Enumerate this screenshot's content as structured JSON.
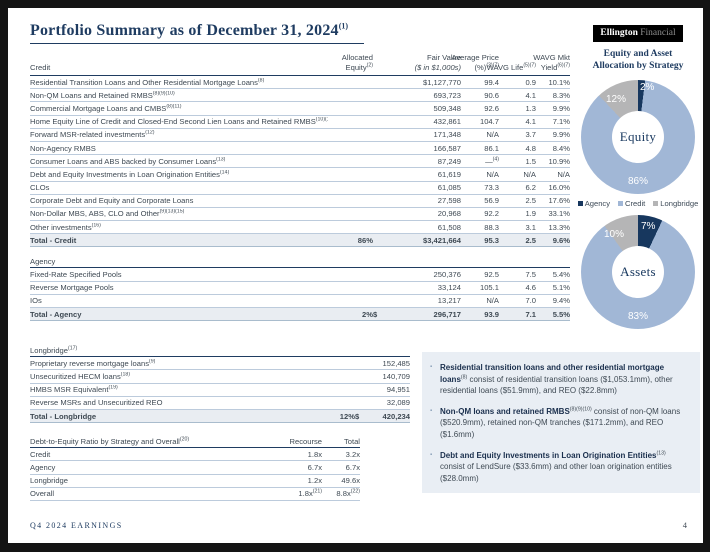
{
  "slide": {
    "title": "Portfolio Summary as of December 31, 2024",
    "title_sup": "(1)",
    "footer_left": "Q4 2024 EARNINGS",
    "page_number": "4"
  },
  "main_table": {
    "section_label": "Credit",
    "headers": {
      "eq_l1": "Allocated",
      "eq_l2": "Equity",
      "eq_sup": "(2)",
      "fv_l1": "Fair Value",
      "fv_l2": "($ in $1,000s)",
      "pr_l1": "Average Price",
      "pr_l2": "(%)",
      "pr_sup": "(3)(7)",
      "lf": "WAVG Life",
      "lf_sup": "(5)(7)",
      "yd_l1": "WAVG Mkt",
      "yd_l2": "Yield",
      "yd_sup": "(6)(7)"
    },
    "credit_rows": [
      {
        "label": "Residential Transition Loans and Other Residential Mortgage Loans",
        "sup": "(8)",
        "equity": "",
        "fair_value": "$1,127,770",
        "price": "99.4",
        "price_sup": "",
        "life": "0.9",
        "yield": "10.1%"
      },
      {
        "label": "Non-QM Loans and Retained RMBS",
        "sup": "(8)(9)(10)",
        "equity": "",
        "fair_value": "693,723",
        "price": "90.6",
        "price_sup": "",
        "life": "4.1",
        "yield": "8.3%"
      },
      {
        "label": "Commercial Mortgage Loans and CMBS",
        "sup": "(8)(11)",
        "equity": "",
        "fair_value": "509,348",
        "price": "92.6",
        "price_sup": "",
        "life": "1.3",
        "yield": "9.9%"
      },
      {
        "label": "Home Equity Line of Credit and Closed-End Second Lien Loans and Retained RMBS",
        "sup": "(10)(13)",
        "equity": "",
        "fair_value": "432,861",
        "price": "104.7",
        "price_sup": "",
        "life": "4.1",
        "yield": "7.1%"
      },
      {
        "label": "Forward MSR-related investments",
        "sup": "(12)",
        "equity": "",
        "fair_value": "171,348",
        "price": "N/A",
        "price_sup": "",
        "life": "3.7",
        "yield": "9.9%"
      },
      {
        "label": "Non-Agency RMBS",
        "sup": "",
        "equity": "",
        "fair_value": "166,587",
        "price": "86.1",
        "price_sup": "",
        "life": "4.8",
        "yield": "8.4%"
      },
      {
        "label": "Consumer Loans and ABS backed by Consumer Loans",
        "sup": "(13)",
        "equity": "",
        "fair_value": "87,249",
        "price": "—",
        "price_sup": "(4)",
        "life": "1.5",
        "yield": "10.9%"
      },
      {
        "label": "Debt and Equity Investments in Loan Origination Entities",
        "sup": "(14)",
        "equity": "",
        "fair_value": "61,619",
        "price": "N/A",
        "price_sup": "",
        "life": "N/A",
        "yield": "N/A"
      },
      {
        "label": "CLOs",
        "sup": "",
        "equity": "",
        "fair_value": "61,085",
        "price": "73.3",
        "price_sup": "",
        "life": "6.2",
        "yield": "16.0%"
      },
      {
        "label": "Corporate Debt and Equity and Corporate Loans",
        "sup": "",
        "equity": "",
        "fair_value": "27,598",
        "price": "56.9",
        "price_sup": "",
        "life": "2.5",
        "yield": "17.6%"
      },
      {
        "label": "Non-Dollar MBS, ABS, CLO and Other",
        "sup": "(9)(13)(15)",
        "equity": "",
        "fair_value": "20,968",
        "price": "92.2",
        "price_sup": "",
        "life": "1.9",
        "yield": "33.1%"
      },
      {
        "label": "Other investments",
        "sup": "(16)",
        "equity": "",
        "fair_value": "61,508",
        "price": "88.3",
        "price_sup": "",
        "life": "3.1",
        "yield": "13.3%"
      }
    ],
    "credit_total": {
      "label": "Total - Credit",
      "equity": "86%",
      "dollar": "",
      "fair_value": "$3,421,664",
      "price": "95.3",
      "life": "2.5",
      "yield": "9.6%"
    },
    "agency_label": "Agency",
    "agency_rows": [
      {
        "label": "Fixed-Rate Specified Pools",
        "sup": "",
        "equity": "",
        "fair_value": "250,376",
        "price": "92.5",
        "price_sup": "",
        "life": "7.5",
        "yield": "5.4%"
      },
      {
        "label": "Reverse Mortgage Pools",
        "sup": "",
        "equity": "",
        "fair_value": "33,124",
        "price": "105.1",
        "price_sup": "",
        "life": "4.6",
        "yield": "5.1%"
      },
      {
        "label": "IOs",
        "sup": "",
        "equity": "",
        "fair_value": "13,217",
        "price": "N/A",
        "price_sup": "",
        "life": "7.0",
        "yield": "9.4%"
      }
    ],
    "agency_total": {
      "label": "Total - Agency",
      "equity": "2%",
      "dollar": "$",
      "fair_value": "296,717",
      "price": "93.9",
      "life": "7.1",
      "yield": "5.5%"
    }
  },
  "longbridge_table": {
    "section_label": "Longbridge",
    "section_sup": "(17)",
    "rows": [
      {
        "label": "Proprietary reverse mortgage loans",
        "sup": "(9)",
        "fair_value": "152,485"
      },
      {
        "label": "Unsecuritized HECM loans",
        "sup": "(18)",
        "fair_value": "140,709"
      },
      {
        "label": "HMBS MSR Equivalent",
        "sup": "(19)",
        "fair_value": "94,951"
      },
      {
        "label": "Reverse MSRs and Unsecuritized REO",
        "sup": "",
        "fair_value": "32,089"
      }
    ],
    "total": {
      "label": "Total - Longbridge",
      "equity": "12%",
      "dollar": "$",
      "fair_value": "420,234"
    }
  },
  "dte_table": {
    "header_label": "Debt-to-Equity Ratio by Strategy and Overall",
    "header_sup": "(20)",
    "col_recourse": "Recourse",
    "col_total": "Total",
    "rows": [
      {
        "label": "Credit",
        "recourse": "1.8x",
        "recourse_sup": "",
        "total": "3.2x",
        "total_sup": ""
      },
      {
        "label": "Agency",
        "recourse": "6.7x",
        "recourse_sup": "",
        "total": "6.7x",
        "total_sup": ""
      },
      {
        "label": "Longbridge",
        "recourse": "1.2x",
        "recourse_sup": "",
        "total": "49.6x",
        "total_sup": ""
      },
      {
        "label": "Overall",
        "recourse": "1.8x",
        "recourse_sup": "(21)",
        "total": "8.8x",
        "total_sup": "(22)"
      }
    ]
  },
  "bullets": [
    {
      "bold": "Residential transition loans and other residential mortgage loans",
      "sup": "(8)",
      "rest": " consist of residential transition loans ($1,053.1mm), other residential loans ($51.9mm), and REO ($22.8mm)"
    },
    {
      "bold": "Non-QM loans and retained RMBS",
      "sup": "(8)(9)(10)",
      "rest": " consist of non-QM loans ($520.9mm), retained non-QM tranches ($171.2mm), and REO ($1.6mm)"
    },
    {
      "bold": "Debt and Equity Investments in Loan Origination Entities",
      "sup": "(13)",
      "rest": " consist of LendSure ($33.6mm) and other loan origination entities ($28.0mm)"
    }
  ],
  "sidebar": {
    "logo_bold": "Ellington",
    "logo_light": "Financial",
    "panel_title_l1": "Equity and Asset",
    "panel_title_l2": "Allocation by Strategy",
    "legend": [
      {
        "label": "Agency",
        "color": "#17375e"
      },
      {
        "label": "Credit",
        "color": "#a1b7d6"
      },
      {
        "label": "Longbridge",
        "color": "#b5b5b6"
      }
    ]
  },
  "chart_data": [
    {
      "type": "pie",
      "title": "Equity",
      "categories": [
        "Agency",
        "Credit",
        "Longbridge"
      ],
      "values": [
        2,
        86,
        12
      ],
      "labels": [
        "2%",
        "86%",
        "12%"
      ],
      "colors": [
        "#17375e",
        "#a1b7d6",
        "#b5b5b6"
      ],
      "legend_position": "below",
      "donut": true
    },
    {
      "type": "pie",
      "title": "Assets",
      "categories": [
        "Agency",
        "Credit",
        "Longbridge"
      ],
      "values": [
        7,
        83,
        10
      ],
      "labels": [
        "7%",
        "83%",
        "10%"
      ],
      "colors": [
        "#17375e",
        "#a1b7d6",
        "#b5b5b6"
      ],
      "legend_position": "above",
      "donut": true
    }
  ]
}
